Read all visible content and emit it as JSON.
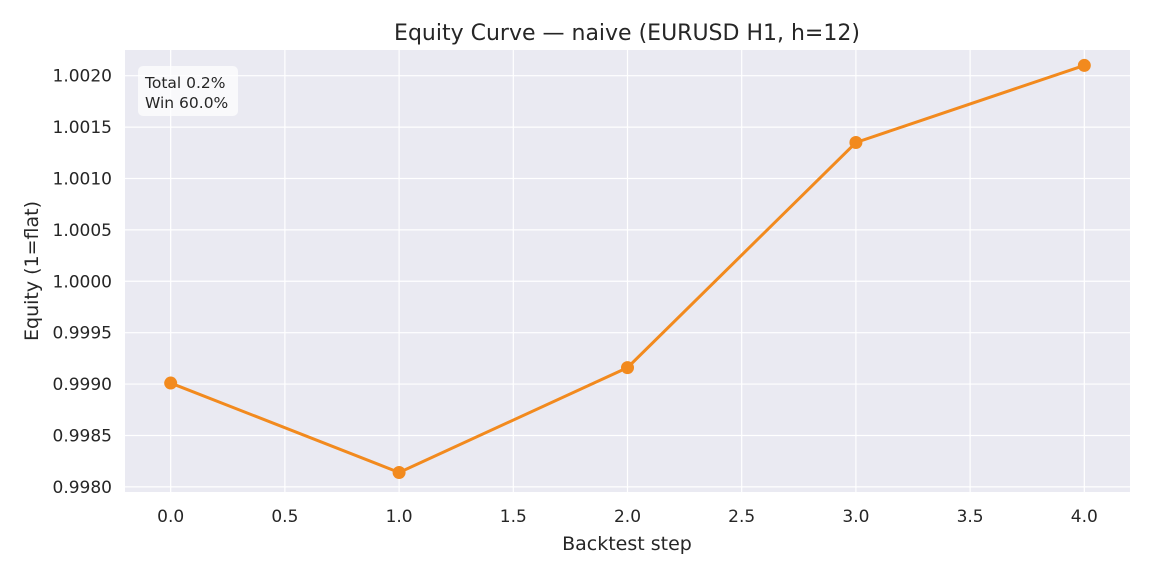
{
  "chart_data": {
    "type": "line",
    "title": "Equity Curve — naive (EURUSD H1, h=12)",
    "xlabel": "Backtest step",
    "ylabel": "Equity (1=flat)",
    "x": [
      0,
      1,
      2,
      3,
      4
    ],
    "series": [
      {
        "values": [
          0.99901,
          0.99814,
          0.99916,
          1.00135,
          1.0021
        ],
        "color": "#f28a1e",
        "marker": "circle"
      }
    ],
    "xlim": [
      -0.2,
      4.2
    ],
    "ylim": [
      0.99795,
      1.00225
    ],
    "xticks": [
      0.0,
      0.5,
      1.0,
      1.5,
      2.0,
      2.5,
      3.0,
      3.5,
      4.0
    ],
    "xtick_labels": [
      "0.0",
      "0.5",
      "1.0",
      "1.5",
      "2.0",
      "2.5",
      "3.0",
      "3.5",
      "4.0"
    ],
    "yticks": [
      0.998,
      0.9985,
      0.999,
      0.9995,
      1.0,
      1.0005,
      1.001,
      1.0015,
      1.002
    ],
    "ytick_labels": [
      "0.9980",
      "0.9985",
      "0.9990",
      "0.9995",
      "1.0000",
      "1.0005",
      "1.0010",
      "1.0015",
      "1.0020"
    ],
    "grid": true,
    "annotation": {
      "lines": [
        "Total 0.2%",
        "Win 60.0%"
      ],
      "placement": "top-left"
    },
    "colors": {
      "plot_background": "#eaeaf2",
      "grid": "#ffffff",
      "line": "#f28a1e"
    }
  }
}
